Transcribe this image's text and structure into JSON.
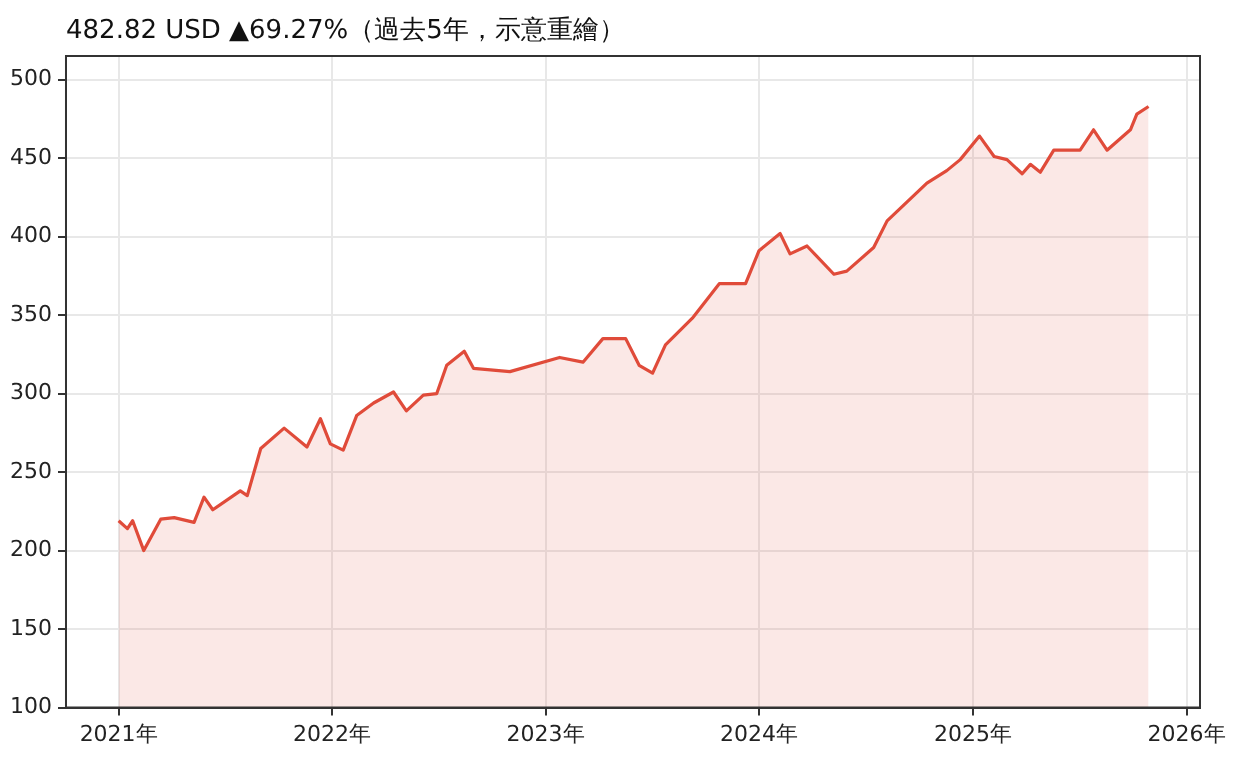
{
  "chart_data": {
    "type": "area",
    "title": "482.82 USD ▲69.27%（過去5年，示意重繪）",
    "x": [
      "2021-01-01",
      "2021-01-16",
      "2021-01-25",
      "2021-02-13",
      "2021-03-14",
      "2021-04-06",
      "2021-05-10",
      "2021-05-27",
      "2021-06-11",
      "2021-07-28",
      "2021-08-09",
      "2021-09-01",
      "2021-10-11",
      "2021-11-19",
      "2021-12-12",
      "2021-12-29",
      "2022-01-20",
      "2022-02-12",
      "2022-03-13",
      "2022-04-16",
      "2022-05-08",
      "2022-06-06",
      "2022-06-29",
      "2022-07-16",
      "2022-08-15",
      "2022-08-31",
      "2022-11-01",
      "2023-01-25",
      "2023-03-06",
      "2023-04-09",
      "2023-05-18",
      "2023-06-10",
      "2023-07-03",
      "2023-07-25",
      "2023-09-09",
      "2023-10-25",
      "2023-12-09",
      "2024-01-01",
      "2024-02-06",
      "2024-02-23",
      "2024-03-23",
      "2024-05-08",
      "2024-05-30",
      "2024-07-15",
      "2024-08-07",
      "2024-10-14",
      "2024-11-17",
      "2024-12-10",
      "2025-01-12",
      "2025-02-06",
      "2025-02-28",
      "2025-03-26",
      "2025-04-09",
      "2025-04-26",
      "2025-05-19",
      "2025-07-03",
      "2025-07-26",
      "2025-08-18",
      "2025-09-27",
      "2025-10-08",
      "2025-10-28"
    ],
    "series": [
      {
        "color": "#e04b3a",
        "values": [
          219,
          214,
          219,
          200,
          220,
          221,
          218,
          234,
          226,
          238,
          235,
          265,
          278,
          266,
          284,
          268,
          264,
          286,
          294,
          301,
          289,
          299,
          300,
          318,
          327,
          316,
          314,
          323,
          320,
          335,
          335,
          318,
          313,
          331,
          348,
          370,
          370,
          391,
          402,
          389,
          394,
          376,
          378,
          393,
          410,
          434,
          442,
          449,
          464,
          451,
          449,
          440,
          446,
          441,
          455,
          455,
          468,
          455,
          468,
          478,
          482.82
        ]
      }
    ],
    "xlim": [
      "2020-10-03",
      "2026-01-24"
    ],
    "xticks": [
      {
        "value": "2021",
        "label": "2021年"
      },
      {
        "value": "2022",
        "label": "2022年"
      },
      {
        "value": "2023",
        "label": "2023年"
      },
      {
        "value": "2024",
        "label": "2024年"
      },
      {
        "value": "2025",
        "label": "2025年"
      },
      {
        "value": "2026",
        "label": "2026年"
      }
    ],
    "ylim": [
      100,
      515
    ],
    "yticks": [
      100,
      150,
      200,
      250,
      300,
      350,
      400,
      450,
      500
    ],
    "grid": true,
    "legend": false,
    "marker": "none",
    "line_style": "solid"
  }
}
